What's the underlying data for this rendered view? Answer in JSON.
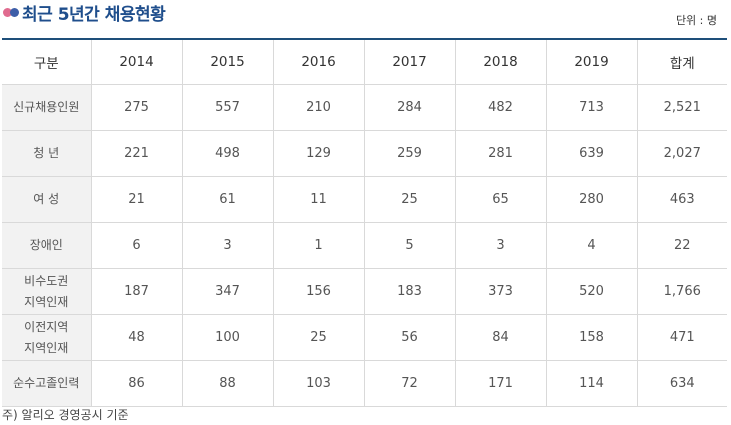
{
  "header": {
    "title": "최근 5년간 채용현황",
    "unit": "단위 : 명"
  },
  "table": {
    "columns": [
      "구분",
      "2014",
      "2015",
      "2016",
      "2017",
      "2018",
      "2019",
      "합계"
    ],
    "rows": [
      {
        "label": "신규채용인원",
        "values": [
          "275",
          "557",
          "210",
          "284",
          "482",
          "713",
          "2,521"
        ]
      },
      {
        "label": "청 년",
        "values": [
          "221",
          "498",
          "129",
          "259",
          "281",
          "639",
          "2,027"
        ]
      },
      {
        "label": "여 성",
        "values": [
          "21",
          "61",
          "11",
          "25",
          "65",
          "280",
          "463"
        ]
      },
      {
        "label": "장애인",
        "values": [
          "6",
          "3",
          "1",
          "5",
          "3",
          "4",
          "22"
        ]
      },
      {
        "label_lines": [
          "비수도권",
          "지역인재"
        ],
        "values": [
          "187",
          "347",
          "156",
          "183",
          "373",
          "520",
          "1,766"
        ]
      },
      {
        "label_lines": [
          "이전지역",
          "지역인재"
        ],
        "values": [
          "48",
          "100",
          "25",
          "56",
          "84",
          "158",
          "471"
        ]
      },
      {
        "label": "순수고졸인력",
        "values": [
          "86",
          "88",
          "103",
          "72",
          "171",
          "114",
          "634"
        ]
      }
    ]
  },
  "footnote": "주) 알리오 경영공시 기준"
}
